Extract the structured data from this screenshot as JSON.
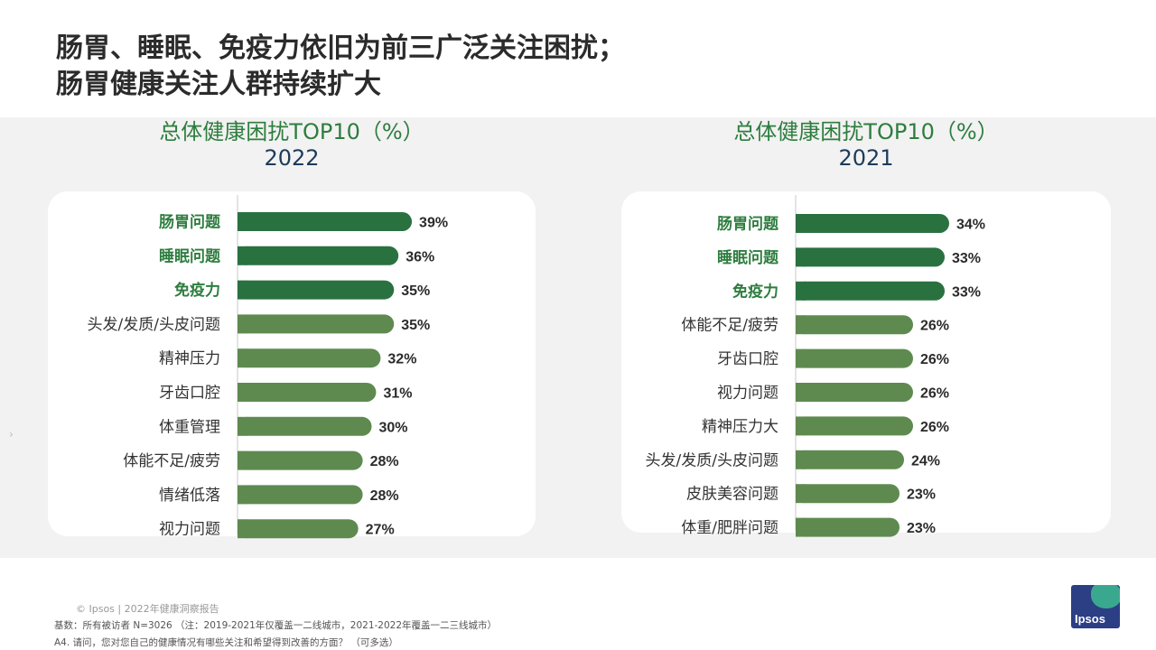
{
  "page": {
    "title_line1": "肠胃、睡眠、免疫力依旧为前三广泛关注困扰；",
    "title_line2": "肠胃健康关注人群持续扩大"
  },
  "colors": {
    "dark_bar": "#2a7140",
    "light_bar": "#5e8a4f",
    "highlight_label": "#2e7d3f",
    "normal_label": "#333333"
  },
  "chart_data": [
    {
      "type": "bar",
      "title": "总体健康困扰TOP10（%）",
      "subtitle": "2022",
      "categories": [
        "肠胃问题",
        "睡眠问题",
        "免疫力",
        "头发/发质/头皮问题",
        "精神压力",
        "牙齿口腔",
        "体重管理",
        "体能不足/疲劳",
        "情绪低落",
        "视力问题"
      ],
      "values": [
        39,
        36,
        35,
        35,
        32,
        31,
        30,
        28,
        28,
        27
      ],
      "value_labels": [
        "39%",
        "36%",
        "35%",
        "35%",
        "32%",
        "31%",
        "30%",
        "28%",
        "28%",
        "27%"
      ],
      "highlighted": [
        true,
        true,
        true,
        false,
        false,
        false,
        false,
        false,
        false,
        false
      ]
    },
    {
      "type": "bar",
      "title": "总体健康困扰TOP10（%）",
      "subtitle": "2021",
      "categories": [
        "肠胃问题",
        "睡眠问题",
        "免疫力",
        "体能不足/疲劳",
        "牙齿口腔",
        "视力问题",
        "精神压力大",
        "头发/发质/头皮问题",
        "皮肤美容问题",
        "体重/肥胖问题"
      ],
      "values": [
        34,
        33,
        33,
        26,
        26,
        26,
        26,
        24,
        23,
        23
      ],
      "value_labels": [
        "34%",
        "33%",
        "33%",
        "26%",
        "26%",
        "26%",
        "26%",
        "24%",
        "23%",
        "23%"
      ],
      "highlighted": [
        true,
        true,
        true,
        false,
        false,
        false,
        false,
        false,
        false,
        false
      ]
    }
  ],
  "footer": {
    "copyright": "© Ipsos | 2022年健康洞察报告",
    "base": "基数：所有被访者  N=3026 （注：2019-2021年仅覆盖一二线城市，2021-2022年覆盖一二三线城市）",
    "question": "A4. 请问，您对您自己的健康情况有哪些关注和希望得到改善的方面？ （可多选）",
    "logo_text": "Ipsos"
  }
}
